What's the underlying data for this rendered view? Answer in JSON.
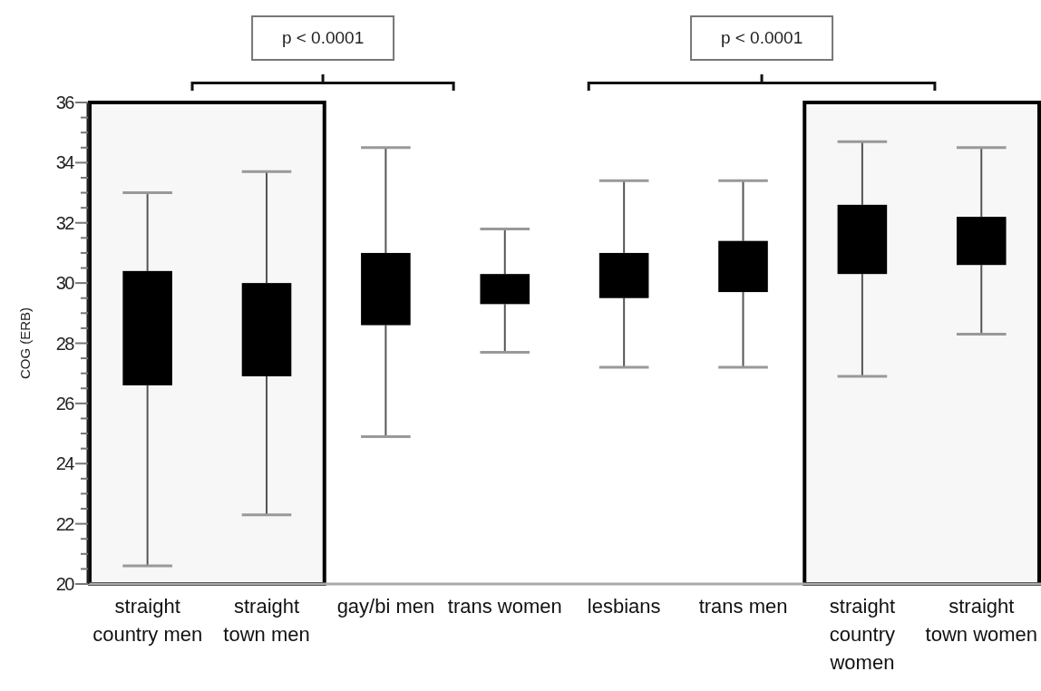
{
  "chart_data": {
    "type": "box",
    "ylabel": "COG (ERB)",
    "categories": [
      "straight country men",
      "straight town men",
      "gay/bi men",
      "trans women",
      "lesbians",
      "trans men",
      "straight country women",
      "straight town women"
    ],
    "color": "#000000",
    "boxes": [
      {
        "low": 20.6,
        "q1": 26.6,
        "q3": 30.4,
        "high": 33.0
      },
      {
        "low": 22.3,
        "q1": 26.9,
        "q3": 30.0,
        "high": 33.7
      },
      {
        "low": 24.9,
        "q1": 28.6,
        "q3": 31.0,
        "high": 34.5
      },
      {
        "low": 27.7,
        "q1": 29.3,
        "q3": 30.3,
        "high": 31.8
      },
      {
        "low": 27.2,
        "q1": 29.5,
        "q3": 31.0,
        "high": 33.4
      },
      {
        "low": 27.2,
        "q1": 29.7,
        "q3": 31.4,
        "high": 33.4
      },
      {
        "low": 26.9,
        "q1": 30.3,
        "q3": 32.6,
        "high": 34.7
      },
      {
        "low": 28.3,
        "q1": 30.6,
        "q3": 32.2,
        "high": 34.5
      }
    ],
    "ylim": [
      20,
      36
    ],
    "yticks": [
      20,
      {
        "value": 20.5,
        "label": null
      },
      {
        "value": 21,
        "label": null
      },
      {
        "value": 21.5,
        "label": null
      },
      22,
      {
        "value": 22.5,
        "label": null
      },
      {
        "value": 23,
        "label": null
      },
      {
        "value": 23.5,
        "label": null
      },
      24,
      {
        "value": 24.5,
        "label": null
      },
      {
        "value": 25,
        "label": null
      },
      {
        "value": 25.5,
        "label": null
      },
      26,
      {
        "value": 26.5,
        "label": null
      },
      {
        "value": 27,
        "label": null
      },
      {
        "value": 27.5,
        "label": null
      },
      28,
      {
        "value": 28.5,
        "label": null
      },
      {
        "value": 29,
        "label": null
      },
      {
        "value": 29.5,
        "label": null
      },
      30,
      {
        "value": 30.5,
        "label": null
      },
      {
        "value": 31,
        "label": null
      },
      {
        "value": 31.5,
        "label": null
      },
      32,
      {
        "value": 32.5,
        "label": null
      },
      {
        "value": 33,
        "label": null
      },
      {
        "value": 33.5,
        "label": null
      },
      34,
      {
        "value": 34.5,
        "label": null
      },
      {
        "value": 35,
        "label": null
      },
      {
        "value": 35.5,
        "label": null
      },
      36
    ],
    "bands": [
      {
        "axis": "x",
        "from": "straight country men",
        "to": "straight town men",
        "color": "#000000"
      },
      {
        "axis": "x",
        "from": "straight country women",
        "to": "straight town women",
        "color": "#000000"
      }
    ],
    "annotations": [
      "p < 0.0001",
      "p < 0.0001"
    ],
    "grid": false
  }
}
